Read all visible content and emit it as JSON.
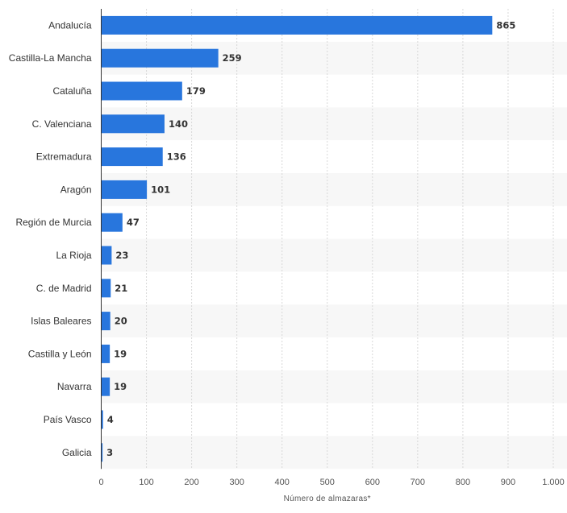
{
  "chart_data": {
    "type": "bar",
    "orientation": "horizontal",
    "title": "",
    "xlabel": "Número de almazaras*",
    "ylabel": "",
    "categories": [
      "Andalucía",
      "Castilla-La Mancha",
      "Cataluña",
      "C. Valenciana",
      "Extremadura",
      "Aragón",
      "Región de Murcia",
      "La Rioja",
      "C. de Madrid",
      "Islas Baleares",
      "Castilla y León",
      "Navarra",
      "País Vasco",
      "Galicia"
    ],
    "values": [
      865,
      259,
      179,
      140,
      136,
      101,
      47,
      23,
      21,
      20,
      19,
      19,
      4,
      3
    ],
    "xlim": [
      0,
      1000
    ],
    "xticks": [
      0,
      100,
      200,
      300,
      400,
      500,
      600,
      700,
      800,
      900,
      1000
    ],
    "xtick_labels": [
      "0",
      "100",
      "200",
      "300",
      "400",
      "500",
      "600",
      "700",
      "800",
      "900",
      "1.000"
    ],
    "grid": true,
    "bar_color": "#2876dd",
    "band_color": "#f7f7f7"
  }
}
